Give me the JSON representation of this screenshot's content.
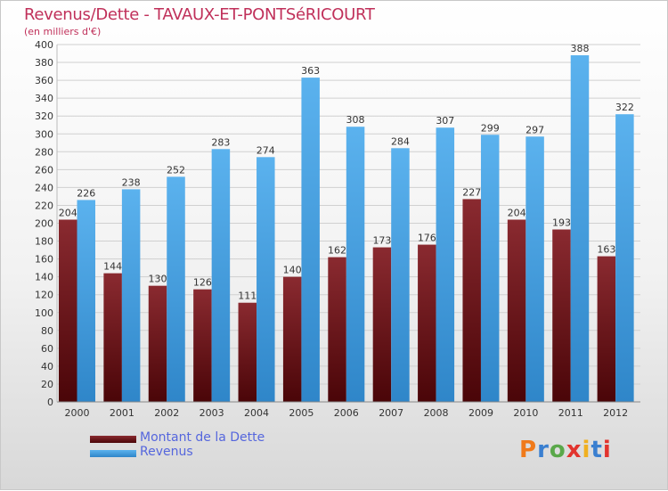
{
  "title": "Revenus/Dette - TAVAUX-ET-PONTSéRICOURT",
  "subtitle": "(en milliers d'€)",
  "logo": {
    "text": "Proxiti",
    "colors": [
      "#f07a1a",
      "#3a7fd0",
      "#5aa84a",
      "#e2342e",
      "#f0b020",
      "#3a7fd0",
      "#e2342e"
    ]
  },
  "legend": {
    "items": [
      {
        "label": "Montant de la Dette",
        "color": "#6a0f14"
      },
      {
        "label": "Revenus",
        "color": "#4aa3e6"
      }
    ]
  },
  "chart_data": {
    "type": "bar",
    "categories": [
      "2000",
      "2001",
      "2002",
      "2003",
      "2004",
      "2005",
      "2006",
      "2007",
      "2008",
      "2009",
      "2010",
      "2011",
      "2012"
    ],
    "series": [
      {
        "name": "Montant de la Dette",
        "color": "#6a0f14",
        "values": [
          204,
          144,
          130,
          126,
          111,
          140,
          162,
          173,
          176,
          227,
          204,
          193,
          163
        ]
      },
      {
        "name": "Revenus",
        "color": "#4aa3e6",
        "values": [
          226,
          238,
          252,
          283,
          274,
          363,
          308,
          284,
          307,
          299,
          297,
          388,
          322
        ]
      }
    ],
    "ylim": [
      0,
      400
    ],
    "ytick_step": 20,
    "grid": true,
    "legend_position": "bottom-left"
  }
}
